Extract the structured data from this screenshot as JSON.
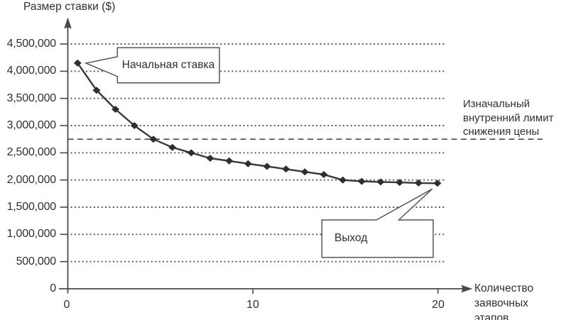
{
  "chart_data": {
    "type": "line",
    "title": "",
    "ylabel": "Размер ставки ($)",
    "xlabel": "Количество заявочных этапов",
    "series_name": "Размер ставки",
    "x": [
      1,
      2,
      3,
      4,
      5,
      6,
      7,
      8,
      9,
      10,
      11,
      12,
      13,
      14,
      15,
      16,
      17,
      18,
      19,
      20
    ],
    "values": [
      4150000,
      3650000,
      3300000,
      3000000,
      2750000,
      2600000,
      2500000,
      2400000,
      2350000,
      2300000,
      2250000,
      2200000,
      2150000,
      2100000,
      2000000,
      1975000,
      1965000,
      1955000,
      1945000,
      1940000
    ],
    "y_ticks": [
      {
        "value": 0,
        "label": "0"
      },
      {
        "value": 500000,
        "label": "500,000"
      },
      {
        "value": 1000000,
        "label": "1,000,000"
      },
      {
        "value": 1500000,
        "label": "1,500,000"
      },
      {
        "value": 2000000,
        "label": "2,000,000"
      },
      {
        "value": 2500000,
        "label": "2,500,000"
      },
      {
        "value": 3000000,
        "label": "3,000,000"
      },
      {
        "value": 3500000,
        "label": "3,500,000"
      },
      {
        "value": 4000000,
        "label": "4,000,000"
      },
      {
        "value": 4500000,
        "label": "4,500,000"
      }
    ],
    "x_ticks": [
      {
        "value": 0,
        "label": "0"
      },
      {
        "value": 10,
        "label": "10"
      },
      {
        "value": 20,
        "label": "20"
      }
    ],
    "ylim": [
      0,
      4750000
    ],
    "xlim": [
      0,
      21.5
    ],
    "grid": "horizontal-dotted",
    "legend": "none",
    "marker": "diamond",
    "annotations": [
      {
        "id": "start",
        "text": "Начальная ставка",
        "target_x": 1,
        "target_y": 4150000
      },
      {
        "id": "exit",
        "text": "Выход",
        "target_x": 20,
        "target_y": 1940000
      },
      {
        "id": "limit",
        "text": "Изначальный внутренний лимит снижения цены",
        "style": "dashed-horizontal-line",
        "value": 2750000
      }
    ]
  },
  "colors": {
    "line": "#383838",
    "marker": "#2e2e2e",
    "grid": "#565656",
    "axis": "#4a4a4a",
    "limit_line": "#4a4a4a",
    "callout_border": "#565656",
    "callout_fill": "#ffffff",
    "text": "#2f2f2f",
    "background": "#ffffff"
  }
}
